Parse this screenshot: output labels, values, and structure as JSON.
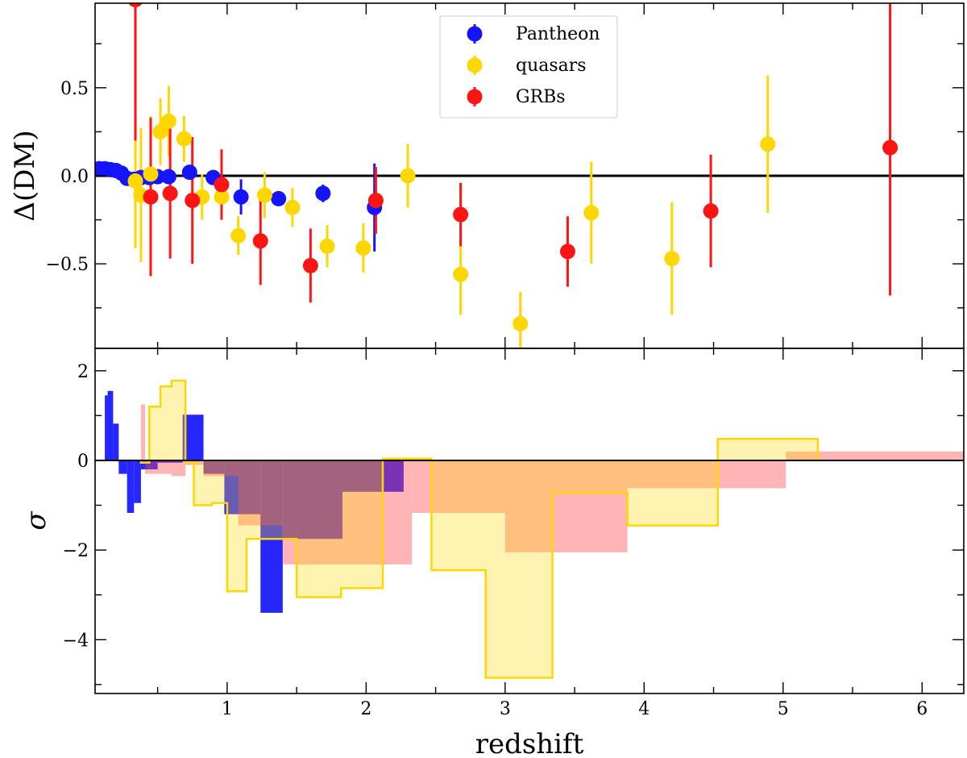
{
  "chart_data": [
    {
      "type": "scatter",
      "panel": "top",
      "ylabel": "Δ(DM)",
      "xlabel": "",
      "xlim": [
        0.05,
        6.3
      ],
      "ylim": [
        -0.98,
        0.98
      ],
      "x_ticks": [
        1,
        2,
        3,
        4,
        5,
        6
      ],
      "y_ticks": [
        0.5,
        0.0,
        -0.5
      ],
      "y_tick_labels": [
        "0.5",
        "0.0",
        "−0.5"
      ],
      "reference_line": 0,
      "legend": {
        "location": "top-center",
        "entries": [
          "Pantheon",
          "quasars",
          "GRBs"
        ]
      },
      "series": [
        {
          "name": "Pantheon",
          "color": "#1414ff",
          "points": [
            {
              "x": 0.08,
              "y": 0.04,
              "err": 0.01
            },
            {
              "x": 0.12,
              "y": 0.04,
              "err": 0.01
            },
            {
              "x": 0.16,
              "y": 0.035,
              "err": 0.01
            },
            {
              "x": 0.2,
              "y": 0.03,
              "err": 0.01
            },
            {
              "x": 0.24,
              "y": 0.015,
              "err": 0.01
            },
            {
              "x": 0.28,
              "y": -0.015,
              "err": 0.01
            },
            {
              "x": 0.33,
              "y": -0.02,
              "err": 0.01
            },
            {
              "x": 0.38,
              "y": -0.01,
              "err": 0.01
            },
            {
              "x": 0.44,
              "y": -0.01,
              "err": 0.01
            },
            {
              "x": 0.5,
              "y": -0.005,
              "err": 0.01
            },
            {
              "x": 0.58,
              "y": -0.005,
              "err": 0.01
            },
            {
              "x": 0.73,
              "y": 0.02,
              "err": 0.02
            },
            {
              "x": 0.9,
              "y": -0.01,
              "err": 0.02
            },
            {
              "x": 1.1,
              "y": -0.12,
              "err": 0.1
            },
            {
              "x": 1.37,
              "y": -0.13,
              "err": 0.03
            },
            {
              "x": 1.69,
              "y": -0.1,
              "err": 0.05
            },
            {
              "x": 2.06,
              "y": -0.18,
              "err": 0.25
            }
          ]
        },
        {
          "name": "quasars",
          "color": "#ffd700",
          "points": [
            {
              "x": 0.34,
              "y": -0.03,
              "err": 0.38
            },
            {
              "x": 0.38,
              "y": -0.11,
              "err": 0.38
            },
            {
              "x": 0.45,
              "y": 0.01,
              "err": 0.33
            },
            {
              "x": 0.52,
              "y": 0.25,
              "err": 0.19
            },
            {
              "x": 0.58,
              "y": 0.31,
              "err": 0.2
            },
            {
              "x": 0.69,
              "y": 0.21,
              "err": 0.13
            },
            {
              "x": 0.82,
              "y": -0.12,
              "err": 0.13
            },
            {
              "x": 0.96,
              "y": -0.12,
              "err": 0.13
            },
            {
              "x": 1.08,
              "y": -0.34,
              "err": 0.11
            },
            {
              "x": 1.27,
              "y": -0.11,
              "err": 0.13
            },
            {
              "x": 1.47,
              "y": -0.18,
              "err": 0.11
            },
            {
              "x": 1.72,
              "y": -0.4,
              "err": 0.12
            },
            {
              "x": 1.98,
              "y": -0.41,
              "err": 0.14
            },
            {
              "x": 2.3,
              "y": 0.0,
              "err": 0.18
            },
            {
              "x": 2.68,
              "y": -0.56,
              "err": 0.23
            },
            {
              "x": 3.11,
              "y": -0.84,
              "err": 0.18
            },
            {
              "x": 3.62,
              "y": -0.21,
              "err": 0.29
            },
            {
              "x": 4.2,
              "y": -0.47,
              "err": 0.32
            },
            {
              "x": 4.89,
              "y": 0.18,
              "err": 0.39
            }
          ]
        },
        {
          "name": "GRBs",
          "color": "#ff1414",
          "points": [
            {
              "x": 0.34,
              "y": 1.0,
              "err": 0.8
            },
            {
              "x": 0.45,
              "y": -0.12,
              "err": 0.45
            },
            {
              "x": 0.59,
              "y": -0.1,
              "err": 0.37
            },
            {
              "x": 0.75,
              "y": -0.14,
              "err": 0.36
            },
            {
              "x": 0.96,
              "y": -0.05,
              "err": 0.2
            },
            {
              "x": 1.24,
              "y": -0.37,
              "err": 0.25
            },
            {
              "x": 1.6,
              "y": -0.51,
              "err": 0.21
            },
            {
              "x": 2.07,
              "y": -0.14,
              "err": 0.19
            },
            {
              "x": 2.68,
              "y": -0.22,
              "err": 0.18
            },
            {
              "x": 3.45,
              "y": -0.43,
              "err": 0.2
            },
            {
              "x": 4.48,
              "y": -0.2,
              "err": 0.32
            },
            {
              "x": 5.77,
              "y": 0.16,
              "err": 0.84
            }
          ]
        }
      ]
    },
    {
      "type": "step-area",
      "panel": "bottom",
      "xlabel": "redshift",
      "ylabel": "σ",
      "xlim": [
        0.05,
        6.3
      ],
      "ylim": [
        -5.2,
        2.5
      ],
      "x_ticks": [
        1,
        2,
        3,
        4,
        5,
        6
      ],
      "y_ticks": [
        2,
        0,
        -2,
        -4
      ],
      "y_tick_labels": [
        "2",
        "0",
        "−2",
        "−4"
      ],
      "reference_line": 0,
      "series": [
        {
          "name": "Pantheon",
          "color": "#1414ff",
          "style": "filled",
          "bins": [
            {
              "x0": 0.12,
              "x1": 0.14,
              "y": 1.45
            },
            {
              "x0": 0.14,
              "x1": 0.18,
              "y": 1.55
            },
            {
              "x0": 0.18,
              "x1": 0.22,
              "y": 0.82
            },
            {
              "x0": 0.22,
              "x1": 0.28,
              "y": -0.3
            },
            {
              "x0": 0.28,
              "x1": 0.33,
              "y": -1.17
            },
            {
              "x0": 0.33,
              "x1": 0.38,
              "y": -0.95
            },
            {
              "x0": 0.38,
              "x1": 0.44,
              "y": -0.2
            },
            {
              "x0": 0.44,
              "x1": 0.5,
              "y": -0.2
            },
            {
              "x0": 0.5,
              "x1": 0.68,
              "y": -0.05
            },
            {
              "x0": 0.68,
              "x1": 0.83,
              "y": 1.02
            },
            {
              "x0": 0.83,
              "x1": 0.98,
              "y": -0.3
            },
            {
              "x0": 0.98,
              "x1": 1.24,
              "y": -1.2
            },
            {
              "x0": 1.24,
              "x1": 1.4,
              "y": -3.4
            },
            {
              "x0": 1.4,
              "x1": 1.5,
              "y": -1.75
            },
            {
              "x0": 1.5,
              "x1": 1.83,
              "y": -1.75
            },
            {
              "x0": 1.83,
              "x1": 2.12,
              "y": -0.7
            },
            {
              "x0": 2.12,
              "x1": 2.27,
              "y": -0.7
            }
          ]
        },
        {
          "name": "GRBs",
          "color": "#ff5a5a",
          "style": "filled",
          "bins": [
            {
              "x0": 0.38,
              "x1": 0.41,
              "y": 1.25
            },
            {
              "x0": 0.41,
              "x1": 0.6,
              "y": -0.3
            },
            {
              "x0": 0.6,
              "x1": 0.7,
              "y": -0.35
            },
            {
              "x0": 0.7,
              "x1": 0.83,
              "y": -0.1
            },
            {
              "x0": 0.83,
              "x1": 1.08,
              "y": -0.35
            },
            {
              "x0": 1.08,
              "x1": 1.2,
              "y": -1.45
            },
            {
              "x0": 1.2,
              "x1": 1.4,
              "y": -1.45
            },
            {
              "x0": 1.4,
              "x1": 1.5,
              "y": -2.32
            },
            {
              "x0": 1.5,
              "x1": 2.33,
              "y": -2.32
            },
            {
              "x0": 2.33,
              "x1": 3.0,
              "y": -1.17
            },
            {
              "x0": 3.0,
              "x1": 3.88,
              "y": -2.05
            },
            {
              "x0": 3.88,
              "x1": 5.02,
              "y": -0.62
            },
            {
              "x0": 5.02,
              "x1": 6.3,
              "y": 0.2
            }
          ]
        },
        {
          "name": "quasars",
          "color": "#ffd700",
          "style": "outlined",
          "bins": [
            {
              "x0": 0.38,
              "x1": 0.44,
              "y": -0.05
            },
            {
              "x0": 0.44,
              "x1": 0.52,
              "y": 1.2
            },
            {
              "x0": 0.52,
              "x1": 0.6,
              "y": 1.65
            },
            {
              "x0": 0.6,
              "x1": 0.7,
              "y": 1.78
            },
            {
              "x0": 0.7,
              "x1": 0.76,
              "y": -0.05
            },
            {
              "x0": 0.76,
              "x1": 0.89,
              "y": -1.0
            },
            {
              "x0": 0.89,
              "x1": 1.0,
              "y": -0.95
            },
            {
              "x0": 1.0,
              "x1": 1.14,
              "y": -2.92
            },
            {
              "x0": 1.14,
              "x1": 1.5,
              "y": -1.75
            },
            {
              "x0": 1.5,
              "x1": 1.82,
              "y": -3.05
            },
            {
              "x0": 1.82,
              "x1": 2.12,
              "y": -2.85
            },
            {
              "x0": 2.12,
              "x1": 2.47,
              "y": 0.04
            },
            {
              "x0": 2.47,
              "x1": 2.86,
              "y": -2.45
            },
            {
              "x0": 2.86,
              "x1": 3.34,
              "y": -4.85
            },
            {
              "x0": 3.34,
              "x1": 3.88,
              "y": -0.72
            },
            {
              "x0": 3.88,
              "x1": 4.53,
              "y": -1.45
            },
            {
              "x0": 4.53,
              "x1": 5.25,
              "y": 0.48
            }
          ]
        }
      ]
    }
  ]
}
